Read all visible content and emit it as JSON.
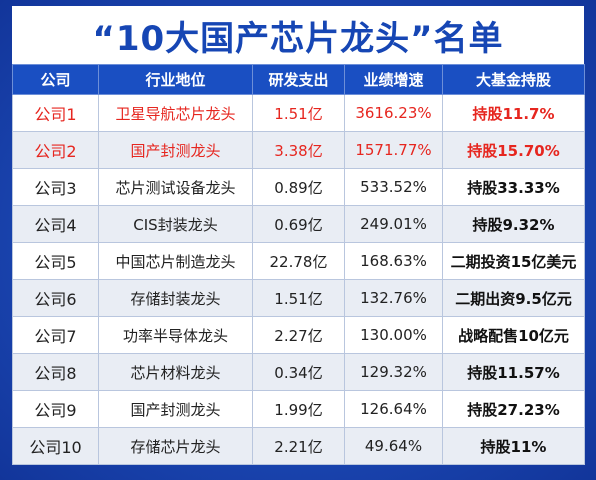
{
  "title": "“10大国产芯片龙头”名单",
  "colors": {
    "background": "#1b47b8",
    "header": "#1a4fc2",
    "title_text": "#1646b4",
    "highlight": "#e6261f"
  },
  "table": {
    "headers": [
      "公司",
      "行业地位",
      "研发支出",
      "业绩增速",
      "大基金持股"
    ],
    "rows": [
      {
        "company": "公司1",
        "position": "卫星导航芯片龙头",
        "rd": "1.51亿",
        "growth": "3616.23%",
        "fund": "持股11.7%",
        "highlight": true
      },
      {
        "company": "公司2",
        "position": "国产封测龙头",
        "rd": "3.38亿",
        "growth": "1571.77%",
        "fund": "持股15.70%",
        "highlight": true
      },
      {
        "company": "公司3",
        "position": "芯片测试设备龙头",
        "rd": "0.89亿",
        "growth": "533.52%",
        "fund": "持股33.33%",
        "highlight": false
      },
      {
        "company": "公司4",
        "position": "CIS封装龙头",
        "rd": "0.69亿",
        "growth": "249.01%",
        "fund": "持股9.32%",
        "highlight": false
      },
      {
        "company": "公司5",
        "position": "中国芯片制造龙头",
        "rd": "22.78亿",
        "growth": "168.63%",
        "fund": "二期投资15亿美元",
        "highlight": false
      },
      {
        "company": "公司6",
        "position": "存储封装龙头",
        "rd": "1.51亿",
        "growth": "132.76%",
        "fund": "二期出资9.5亿元",
        "highlight": false
      },
      {
        "company": "公司7",
        "position": "功率半导体龙头",
        "rd": "2.27亿",
        "growth": "130.00%",
        "fund": "战略配售10亿元",
        "highlight": false
      },
      {
        "company": "公司8",
        "position": "芯片材料龙头",
        "rd": "0.34亿",
        "growth": "129.32%",
        "fund": "持股11.57%",
        "highlight": false
      },
      {
        "company": "公司9",
        "position": "国产封测龙头",
        "rd": "1.99亿",
        "growth": "126.64%",
        "fund": "持股27.23%",
        "highlight": false
      },
      {
        "company": "公司10",
        "position": "存储芯片龙头",
        "rd": "2.21亿",
        "growth": "49.64%",
        "fund": "持股11%",
        "highlight": false
      }
    ]
  }
}
